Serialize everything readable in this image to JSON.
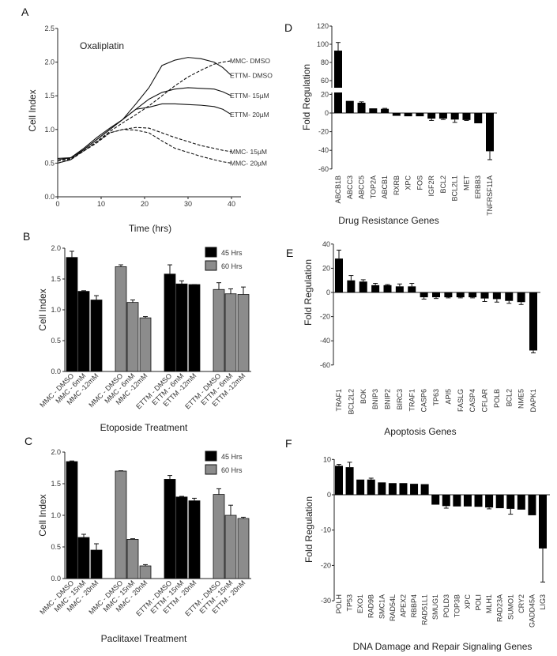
{
  "panel_labels": [
    "A",
    "B",
    "C",
    "D",
    "E",
    "F"
  ],
  "chart_data": [
    {
      "id": "A",
      "type": "line",
      "title": "Oxaliplatin",
      "xlabel": "Time (hrs)",
      "ylabel": "Cell Index",
      "xlim": [
        0,
        40
      ],
      "ylim": [
        0,
        2.5
      ],
      "xticks": [
        0,
        10,
        20,
        30,
        40
      ],
      "yticks": [
        0.0,
        0.5,
        1.0,
        1.5,
        2.0,
        2.5
      ],
      "x": [
        0,
        3,
        6,
        9,
        12,
        15,
        18,
        21,
        24,
        27,
        30,
        33,
        36,
        38,
        40
      ],
      "series": [
        {
          "name": "MMC- DMSO",
          "style": "dashed",
          "values": [
            0.53,
            0.56,
            0.68,
            0.82,
            0.97,
            1.1,
            1.22,
            1.35,
            1.5,
            1.65,
            1.78,
            1.88,
            1.97,
            2.0,
            2.02
          ]
        },
        {
          "name": "ETTM- DMSO",
          "style": "solid",
          "values": [
            0.55,
            0.58,
            0.7,
            0.85,
            1.0,
            1.15,
            1.38,
            1.62,
            1.95,
            2.03,
            2.07,
            2.05,
            2.0,
            1.92,
            1.8
          ]
        },
        {
          "name": "ETTM- 15µM",
          "style": "solid",
          "values": [
            0.5,
            0.55,
            0.7,
            0.85,
            1.0,
            1.15,
            1.3,
            1.45,
            1.55,
            1.6,
            1.62,
            1.61,
            1.6,
            1.56,
            1.5
          ]
        },
        {
          "name": "ETTM- 20µM",
          "style": "solid",
          "values": [
            0.57,
            0.58,
            0.72,
            0.88,
            1.02,
            1.15,
            1.3,
            1.33,
            1.38,
            1.38,
            1.37,
            1.36,
            1.34,
            1.3,
            1.22
          ]
        },
        {
          "name": "MMC- 15µM",
          "style": "dashed",
          "values": [
            0.5,
            0.55,
            0.68,
            0.82,
            0.95,
            1.0,
            1.03,
            1.02,
            0.95,
            0.88,
            0.82,
            0.76,
            0.72,
            0.69,
            0.67
          ]
        },
        {
          "name": "MMC- 20µM",
          "style": "dashed",
          "values": [
            0.55,
            0.57,
            0.68,
            0.8,
            0.95,
            1.0,
            0.99,
            0.95,
            0.83,
            0.72,
            0.66,
            0.6,
            0.55,
            0.52,
            0.5
          ]
        }
      ]
    },
    {
      "id": "B",
      "type": "bar",
      "xlabel": "Etoposide Treatment",
      "ylabel": "Cell Index",
      "ylim": [
        0,
        2.0
      ],
      "yticks": [
        0.0,
        0.5,
        1.0,
        1.5,
        2.0
      ],
      "legend": [
        {
          "name": "45 Hrs",
          "color": "#000000"
        },
        {
          "name": "60 Hrs",
          "color": "#8c8c8c"
        }
      ],
      "legend_position": "top-right",
      "categories": [
        "MMC - DMSO",
        "MMC - 6mM",
        "MMC -12mM",
        "MMC - DMSO",
        "MMC - 6mM",
        "MMC -12mM",
        "ETTM - DMSO",
        "ETTM - 6mM",
        "ETTM -12mM",
        "ETTM - DMSO",
        "ETTM - 6mM",
        "ETTM -12mM"
      ],
      "series_index": [
        0,
        0,
        0,
        1,
        1,
        1,
        0,
        0,
        0,
        1,
        1,
        1
      ],
      "values": [
        1.85,
        1.3,
        1.16,
        1.7,
        1.12,
        0.87,
        1.58,
        1.42,
        1.41,
        1.33,
        1.26,
        1.25
      ],
      "errors": [
        0.1,
        0.01,
        0.07,
        0.03,
        0.04,
        0.02,
        0.15,
        0.05,
        0.0,
        0.11,
        0.08,
        0.12
      ]
    },
    {
      "id": "C",
      "type": "bar",
      "xlabel": "Paclitaxel Treatment",
      "ylabel": "Cell Index",
      "ylim": [
        0,
        2.0
      ],
      "yticks": [
        0.0,
        0.5,
        1.0,
        1.5,
        2.0
      ],
      "legend": [
        {
          "name": "45 Hrs",
          "color": "#000000"
        },
        {
          "name": "60 Hrs",
          "color": "#8c8c8c"
        }
      ],
      "legend_position": "top-right",
      "categories": [
        "MMC - DMSO",
        "MMC - 15nM",
        "MMC - 20nM",
        "MMC - DMSO",
        "MMC - 15nM",
        "MMC - 20nM",
        "ETTM - DMSO",
        "ETTM - 15nM",
        "ETTM - 20nM",
        "ETTM - DMSO",
        "ETTM - 15nM",
        "ETTM - 20nM"
      ],
      "series_index": [
        0,
        0,
        0,
        1,
        1,
        1,
        0,
        0,
        0,
        1,
        1,
        1
      ],
      "values": [
        1.85,
        0.65,
        0.45,
        1.7,
        0.62,
        0.2,
        1.57,
        1.29,
        1.23,
        1.33,
        1.0,
        0.95
      ],
      "errors": [
        0.01,
        0.05,
        0.1,
        0.005,
        0.01,
        0.02,
        0.06,
        0.01,
        0.04,
        0.09,
        0.16,
        0.02
      ]
    },
    {
      "id": "D",
      "type": "bar",
      "xlabel": "Drug Resistance Genes",
      "ylabel": "Fold Regulation",
      "ylim": [
        -60,
        120
      ],
      "axis_break": [
        20,
        50
      ],
      "yticks": [
        -60,
        -40,
        -20,
        0,
        20,
        60,
        80,
        100,
        120
      ],
      "categories": [
        "ABCB1B",
        "ABCC3",
        "ABCC5",
        "TOP2A",
        "ABCB1",
        "RXRB",
        "XPC",
        "FOS",
        "IGF2R",
        "BCL2",
        "BCL2L1",
        "MET",
        "ERBB3",
        "TNFRSF11A"
      ],
      "values": [
        93,
        13,
        11,
        5,
        4.5,
        -3,
        -3.5,
        -3.5,
        -6,
        -6,
        -7,
        -7.5,
        -11,
        -41
      ],
      "errors": [
        9,
        0,
        1,
        0,
        0.5,
        0,
        0,
        0,
        2,
        1,
        3,
        0.5,
        0,
        9
      ]
    },
    {
      "id": "E",
      "type": "bar",
      "xlabel": "Apoptosis Genes",
      "ylabel": "Fold Regulation",
      "ylim": [
        -60,
        40
      ],
      "yticks": [
        -60,
        -40,
        -20,
        0,
        20,
        40
      ],
      "categories": [
        "TRAF1",
        "BCL2L2",
        "BOK",
        "BNIP3",
        "BNIP2",
        "BIRC3",
        "TRAF1",
        "CASP6",
        "TP63",
        "API5",
        "FASLG",
        "CASP4",
        "CFLAR",
        "POLB",
        "BCL2",
        "NME5",
        "DAPK1"
      ],
      "values": [
        28,
        10,
        9,
        6,
        6,
        5,
        5,
        -4,
        -4,
        -4,
        -4,
        -4,
        -5,
        -5.5,
        -7,
        -8,
        -48
      ],
      "errors": [
        7,
        4,
        1.5,
        1.5,
        0.5,
        2,
        2.5,
        1.5,
        1,
        0.5,
        0.5,
        0.5,
        2.5,
        2.5,
        2,
        2,
        2
      ]
    },
    {
      "id": "F",
      "type": "bar",
      "xlabel": "DNA Damage and Repair Signaling Genes",
      "ylabel": "Fold Regulation",
      "ylim": [
        -30,
        10
      ],
      "yticks": [
        -30,
        -20,
        -10,
        0,
        10
      ],
      "categories": [
        "POLH",
        "TP53",
        "EXO1",
        "RAD9B",
        "SMC1A",
        "RAD54L",
        "APEX2",
        "RBBP4",
        "RAD51L1",
        "SMUG1",
        "POLD3",
        "TOP3B",
        "XPC",
        "POLI",
        "MLH1",
        "RAD23A",
        "SUMO1",
        "CRY2",
        "GADD45A",
        "LIG3"
      ],
      "values": [
        8.2,
        7.8,
        4.3,
        4.3,
        3.5,
        3.3,
        3.3,
        3.1,
        3.0,
        -2.8,
        -3.2,
        -3.3,
        -3.3,
        -3.4,
        -3.6,
        -3.8,
        -4.0,
        -4.2,
        -5.8,
        -15.2
      ],
      "errors": [
        0.4,
        1.4,
        0,
        0.4,
        0,
        0,
        0,
        0,
        0,
        0,
        0.6,
        0,
        0,
        0,
        0.4,
        0,
        1.5,
        0,
        0,
        9.5
      ]
    }
  ]
}
